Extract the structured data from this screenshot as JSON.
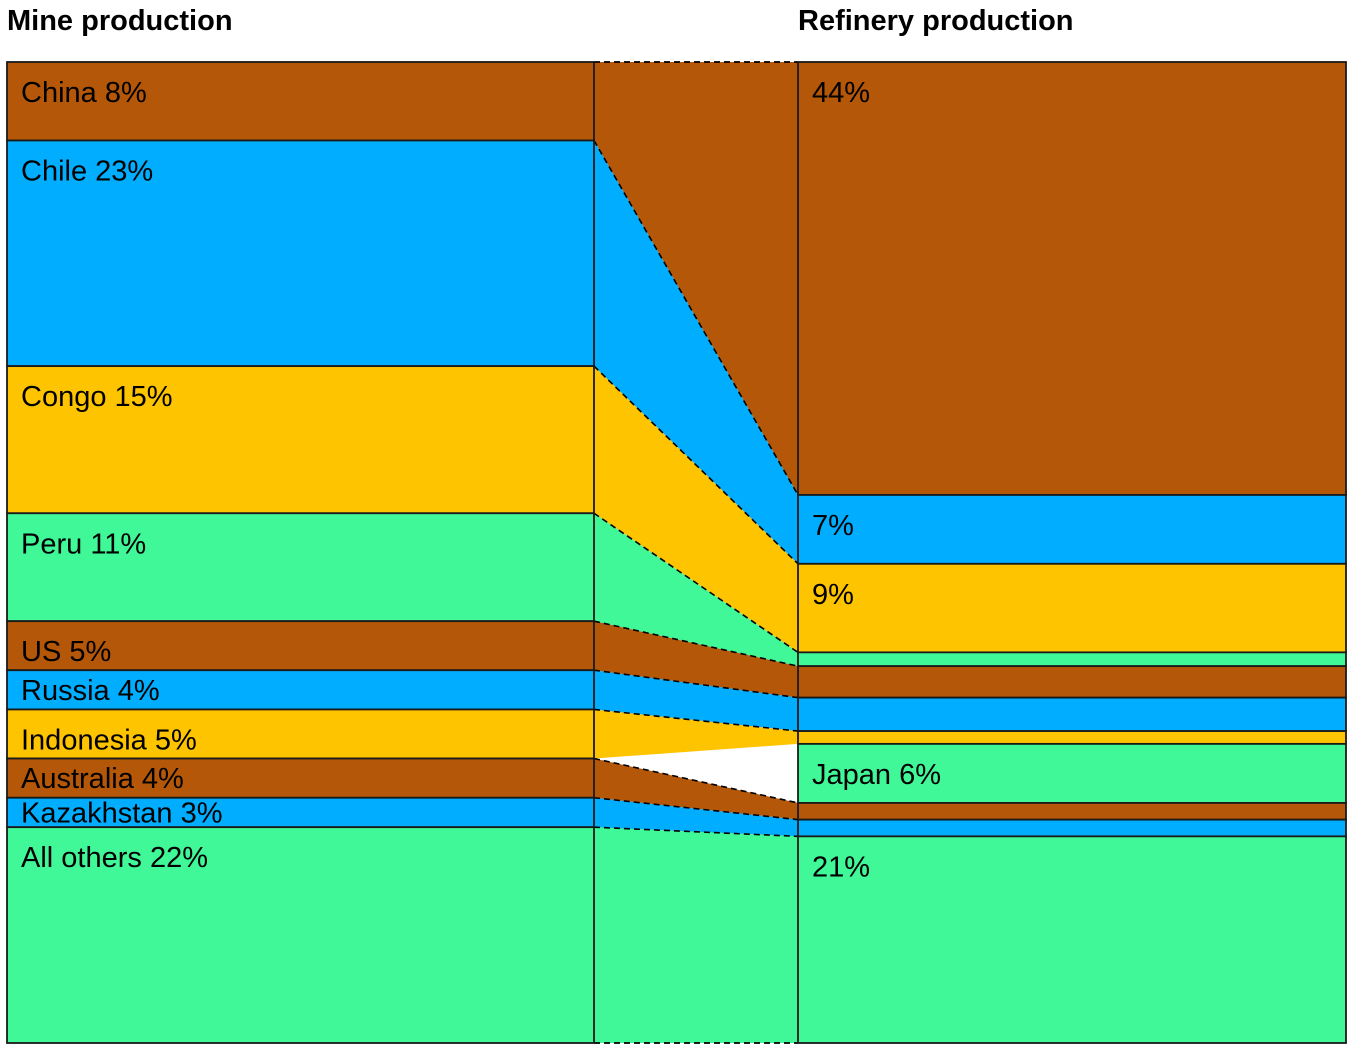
{
  "chart_data": {
    "type": "sankey",
    "left_title": "Mine production",
    "right_title": "Refinery production",
    "colors": {
      "brown": "#b55708",
      "blue": "#00adfe",
      "yellow": "#fec400",
      "green": "#40f897"
    },
    "mine_production": [
      {
        "label": "China 8%",
        "value": 8,
        "color": "brown"
      },
      {
        "label": "Chile 23%",
        "value": 23,
        "color": "blue"
      },
      {
        "label": "Congo 15%",
        "value": 15,
        "color": "yellow"
      },
      {
        "label": "Peru 11%",
        "value": 11,
        "color": "green"
      },
      {
        "label": "US 5%",
        "value": 5,
        "color": "brown"
      },
      {
        "label": "Russia 4%",
        "value": 4,
        "color": "blue"
      },
      {
        "label": "Indonesia 5%",
        "value": 5,
        "color": "yellow"
      },
      {
        "label": "Australia 4%",
        "value": 4,
        "color": "brown"
      },
      {
        "label": "Kazakhstan 3%",
        "value": 3,
        "color": "blue"
      },
      {
        "label": "All others 22%",
        "value": 22,
        "color": "green"
      }
    ],
    "refinery_production": [
      {
        "label": "44%",
        "value": 44,
        "color": "brown"
      },
      {
        "label": "7%",
        "value": 7,
        "color": "blue"
      },
      {
        "label": "9%",
        "value": 9,
        "color": "yellow"
      },
      {
        "label": "",
        "value": 1.4,
        "color": "green"
      },
      {
        "label": "",
        "value": 3.2,
        "color": "brown"
      },
      {
        "label": "",
        "value": 3.4,
        "color": "blue"
      },
      {
        "label": "",
        "value": 1.3,
        "color": "yellow"
      },
      {
        "label": "Japan 6%",
        "value": 6,
        "color": "green"
      },
      {
        "label": "",
        "value": 1.7,
        "color": "brown"
      },
      {
        "label": "",
        "value": 1.7,
        "color": "blue"
      },
      {
        "label": "21%",
        "value": 21,
        "color": "green"
      }
    ],
    "links": [
      [
        0,
        0
      ],
      [
        1,
        1
      ],
      [
        2,
        2
      ],
      [
        3,
        3
      ],
      [
        4,
        4
      ],
      [
        5,
        5
      ],
      [
        6,
        6
      ],
      [
        7,
        8
      ],
      [
        8,
        9
      ],
      [
        9,
        10
      ]
    ]
  }
}
